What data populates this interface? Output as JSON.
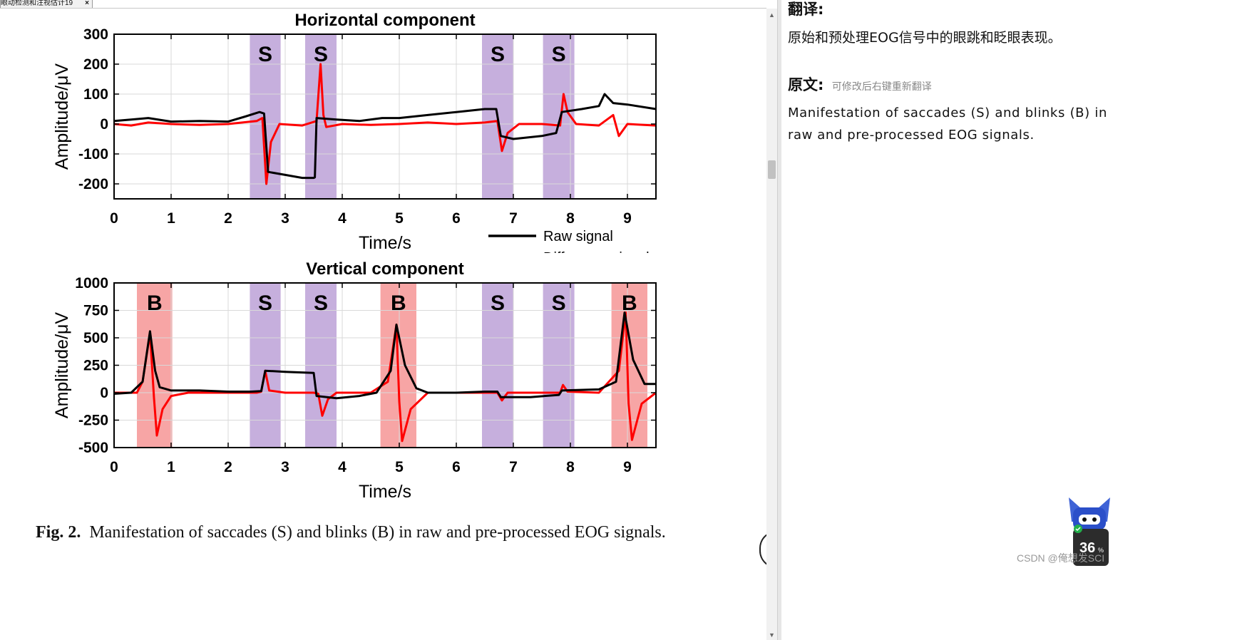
{
  "tab": {
    "title": "眼动检测和注视估计19",
    "close": "×"
  },
  "figure": {
    "caption_label": "Fig. 2.",
    "caption_text": "Manifestation of saccades (S) and blinks (B) in raw and pre-processed EOG signals."
  },
  "chart_data": [
    {
      "type": "line",
      "title": "Horizontal component",
      "xlabel": "Time/s",
      "ylabel": "Amplitude/μV",
      "xlim": [
        0,
        9.5
      ],
      "ylim": [
        -250,
        300
      ],
      "xticks": [
        0,
        1,
        2,
        3,
        4,
        5,
        6,
        7,
        8,
        9
      ],
      "yticks": [
        300,
        200,
        100,
        0,
        -100,
        -200
      ],
      "grid": true,
      "legend": "below-right",
      "regions": [
        {
          "label": "S",
          "x0": 2.38,
          "x1": 2.92,
          "color": "#c6afdd"
        },
        {
          "label": "S",
          "x0": 3.35,
          "x1": 3.9,
          "color": "#c6afdd"
        },
        {
          "label": "S",
          "x0": 6.45,
          "x1": 7.0,
          "color": "#c6afdd"
        },
        {
          "label": "S",
          "x0": 7.52,
          "x1": 8.07,
          "color": "#c6afdd"
        }
      ],
      "series": [
        {
          "name": "Raw signal",
          "color": "#000000",
          "points": [
            [
              0,
              10
            ],
            [
              0.3,
              15
            ],
            [
              0.6,
              20
            ],
            [
              1.0,
              8
            ],
            [
              1.5,
              10
            ],
            [
              2.0,
              8
            ],
            [
              2.3,
              25
            ],
            [
              2.55,
              40
            ],
            [
              2.63,
              35
            ],
            [
              2.7,
              -160
            ],
            [
              3.0,
              -170
            ],
            [
              3.3,
              -180
            ],
            [
              3.5,
              -180
            ],
            [
              3.52,
              -178
            ],
            [
              3.55,
              20
            ],
            [
              3.9,
              15
            ],
            [
              4.3,
              10
            ],
            [
              4.7,
              20
            ],
            [
              5.0,
              20
            ],
            [
              5.5,
              30
            ],
            [
              6.0,
              40
            ],
            [
              6.5,
              50
            ],
            [
              6.7,
              50
            ],
            [
              6.78,
              -40
            ],
            [
              7.0,
              -50
            ],
            [
              7.5,
              -40
            ],
            [
              7.75,
              -30
            ],
            [
              7.85,
              40
            ],
            [
              8.2,
              50
            ],
            [
              8.5,
              60
            ],
            [
              8.6,
              100
            ],
            [
              8.75,
              70
            ],
            [
              9.0,
              65
            ],
            [
              9.5,
              50
            ]
          ]
        },
        {
          "name": "Difference signal",
          "color": "#ff0000",
          "points": [
            [
              0,
              0
            ],
            [
              0.3,
              -5
            ],
            [
              0.6,
              5
            ],
            [
              1.0,
              0
            ],
            [
              1.5,
              -3
            ],
            [
              2.0,
              0
            ],
            [
              2.5,
              10
            ],
            [
              2.6,
              20
            ],
            [
              2.67,
              -200
            ],
            [
              2.75,
              -60
            ],
            [
              2.9,
              0
            ],
            [
              3.3,
              -5
            ],
            [
              3.55,
              10
            ],
            [
              3.62,
              200
            ],
            [
              3.67,
              30
            ],
            [
              3.72,
              -10
            ],
            [
              4.0,
              0
            ],
            [
              4.5,
              -3
            ],
            [
              5.0,
              0
            ],
            [
              5.5,
              5
            ],
            [
              6.0,
              0
            ],
            [
              6.5,
              5
            ],
            [
              6.72,
              10
            ],
            [
              6.8,
              -90
            ],
            [
              6.9,
              -30
            ],
            [
              7.1,
              0
            ],
            [
              7.5,
              0
            ],
            [
              7.82,
              -5
            ],
            [
              7.88,
              100
            ],
            [
              7.95,
              40
            ],
            [
              8.1,
              0
            ],
            [
              8.5,
              -5
            ],
            [
              8.75,
              30
            ],
            [
              8.85,
              -40
            ],
            [
              9.0,
              0
            ],
            [
              9.5,
              -5
            ]
          ]
        }
      ]
    },
    {
      "type": "line",
      "title": "Vertical component",
      "xlabel": "Time/s",
      "ylabel": "Amplitude/μV",
      "xlim": [
        0,
        9.5
      ],
      "ylim": [
        -500,
        1000
      ],
      "xticks": [
        0,
        1,
        2,
        3,
        4,
        5,
        6,
        7,
        8,
        9
      ],
      "yticks": [
        1000,
        750,
        500,
        250,
        0,
        -250,
        -500
      ],
      "grid": true,
      "regions": [
        {
          "label": "B",
          "x0": 0.4,
          "x1": 1.02,
          "color": "#f7a5a5"
        },
        {
          "label": "S",
          "x0": 2.38,
          "x1": 2.92,
          "color": "#c6afdd"
        },
        {
          "label": "S",
          "x0": 3.35,
          "x1": 3.9,
          "color": "#c6afdd"
        },
        {
          "label": "B",
          "x0": 4.67,
          "x1": 5.3,
          "color": "#f7a5a5"
        },
        {
          "label": "S",
          "x0": 6.45,
          "x1": 7.0,
          "color": "#c6afdd"
        },
        {
          "label": "S",
          "x0": 7.52,
          "x1": 8.07,
          "color": "#c6afdd"
        },
        {
          "label": "B",
          "x0": 8.72,
          "x1": 9.35,
          "color": "#f7a5a5"
        }
      ],
      "series": [
        {
          "name": "Raw signal",
          "color": "#000000",
          "points": [
            [
              0,
              -10
            ],
            [
              0.3,
              0
            ],
            [
              0.5,
              100
            ],
            [
              0.63,
              560
            ],
            [
              0.72,
              200
            ],
            [
              0.8,
              50
            ],
            [
              1.0,
              20
            ],
            [
              1.5,
              20
            ],
            [
              2.0,
              10
            ],
            [
              2.4,
              10
            ],
            [
              2.58,
              15
            ],
            [
              2.65,
              200
            ],
            [
              3.0,
              190
            ],
            [
              3.5,
              180
            ],
            [
              3.55,
              -30
            ],
            [
              3.9,
              -50
            ],
            [
              4.3,
              -30
            ],
            [
              4.6,
              0
            ],
            [
              4.85,
              200
            ],
            [
              4.95,
              620
            ],
            [
              5.1,
              250
            ],
            [
              5.3,
              40
            ],
            [
              5.5,
              0
            ],
            [
              6.0,
              0
            ],
            [
              6.5,
              10
            ],
            [
              6.72,
              10
            ],
            [
              6.78,
              -40
            ],
            [
              7.3,
              -40
            ],
            [
              7.8,
              -20
            ],
            [
              7.85,
              20
            ],
            [
              8.5,
              30
            ],
            [
              8.8,
              100
            ],
            [
              8.95,
              730
            ],
            [
              9.1,
              300
            ],
            [
              9.3,
              80
            ],
            [
              9.5,
              80
            ]
          ]
        },
        {
          "name": "Difference signal",
          "color": "#ff0000",
          "points": [
            [
              0,
              0
            ],
            [
              0.4,
              0
            ],
            [
              0.5,
              100
            ],
            [
              0.63,
              540
            ],
            [
              0.7,
              -50
            ],
            [
              0.75,
              -390
            ],
            [
              0.85,
              -150
            ],
            [
              1.0,
              -30
            ],
            [
              1.3,
              0
            ],
            [
              2.0,
              0
            ],
            [
              2.5,
              0
            ],
            [
              2.58,
              10
            ],
            [
              2.65,
              200
            ],
            [
              2.72,
              20
            ],
            [
              3.0,
              0
            ],
            [
              3.5,
              0
            ],
            [
              3.58,
              -10
            ],
            [
              3.65,
              -210
            ],
            [
              3.75,
              -60
            ],
            [
              3.9,
              0
            ],
            [
              4.5,
              0
            ],
            [
              4.8,
              100
            ],
            [
              4.95,
              620
            ],
            [
              5.0,
              -80
            ],
            [
              5.05,
              -440
            ],
            [
              5.2,
              -150
            ],
            [
              5.5,
              0
            ],
            [
              6.0,
              0
            ],
            [
              6.72,
              0
            ],
            [
              6.8,
              -70
            ],
            [
              6.9,
              0
            ],
            [
              7.5,
              0
            ],
            [
              7.82,
              0
            ],
            [
              7.87,
              70
            ],
            [
              7.95,
              10
            ],
            [
              8.5,
              0
            ],
            [
              8.85,
              200
            ],
            [
              8.97,
              730
            ],
            [
              9.02,
              -100
            ],
            [
              9.08,
              -430
            ],
            [
              9.25,
              -100
            ],
            [
              9.5,
              0
            ]
          ]
        }
      ]
    }
  ],
  "translation_panel": {
    "translation_heading": "翻译:",
    "translation_text": "原始和预处理EOG信号中的眼跳和眨眼表现。",
    "original_heading": "原文:",
    "original_hint": "可修改后右键重新翻译",
    "original_text": "Manifestation of saccades (S) and blinks (B) in raw and pre-processed EOG signals."
  },
  "widget": {
    "percent": "36",
    "unit": "%"
  },
  "watermark": "CSDN @俺想发SCI",
  "scrollbar": {
    "up": "▲",
    "down": "▼"
  }
}
